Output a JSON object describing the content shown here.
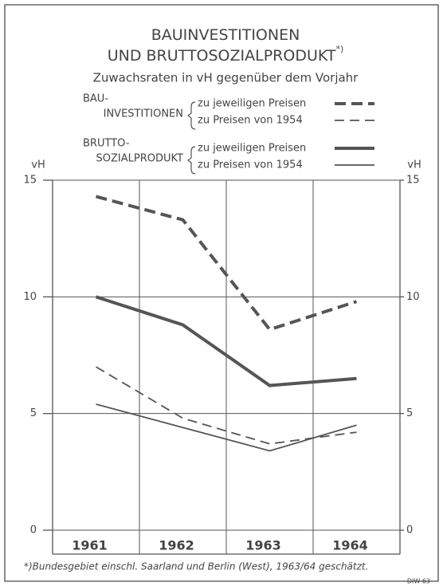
{
  "chart_data": {
    "type": "line",
    "title": [
      "BAUINVESTITIONEN",
      "UND BRUTTOSOZIALPRODUKT"
    ],
    "title_note": "*)",
    "subtitle": "Zuwachsraten in vH gegenüber dem Vorjahr",
    "y_label": "vH",
    "y2_label": "vH",
    "categories": [
      "1961",
      "1962",
      "1963",
      "1964"
    ],
    "legend_groups": [
      [
        "BAU-",
        "INVESTITIONEN"
      ],
      [
        "BRUTTO-",
        "SOZIALPRODUKT"
      ]
    ],
    "series": [
      {
        "name": "zu jeweiligen Preisen",
        "group": 0,
        "color": "#555555",
        "style": "dashed",
        "weight": "bold",
        "values": [
          14.3,
          13.3,
          8.6,
          9.8
        ]
      },
      {
        "name": "zu Preisen von 1954",
        "group": 0,
        "color": "#555555",
        "style": "dashed",
        "weight": "normal",
        "values": [
          7.0,
          4.8,
          3.7,
          4.2
        ]
      },
      {
        "name": "zu jeweiligen Preisen",
        "group": 1,
        "color": "#555555",
        "style": "solid",
        "weight": "bold",
        "values": [
          10.0,
          8.8,
          6.2,
          6.5
        ]
      },
      {
        "name": "zu Preisen von 1954",
        "group": 1,
        "color": "#555555",
        "style": "solid",
        "weight": "normal",
        "values": [
          5.4,
          4.4,
          3.4,
          4.5
        ]
      }
    ],
    "ylim": [
      0,
      15
    ],
    "yticks": [
      0,
      5,
      10,
      15
    ],
    "y2lim": [
      0,
      15
    ],
    "y2ticks": [
      0,
      5,
      10,
      15
    ],
    "grid": true,
    "footnote": "*)Bundesgebiet einschl. Saarland und Berlin (West), 1963/64 geschätzt.",
    "source": "DIW 63"
  }
}
